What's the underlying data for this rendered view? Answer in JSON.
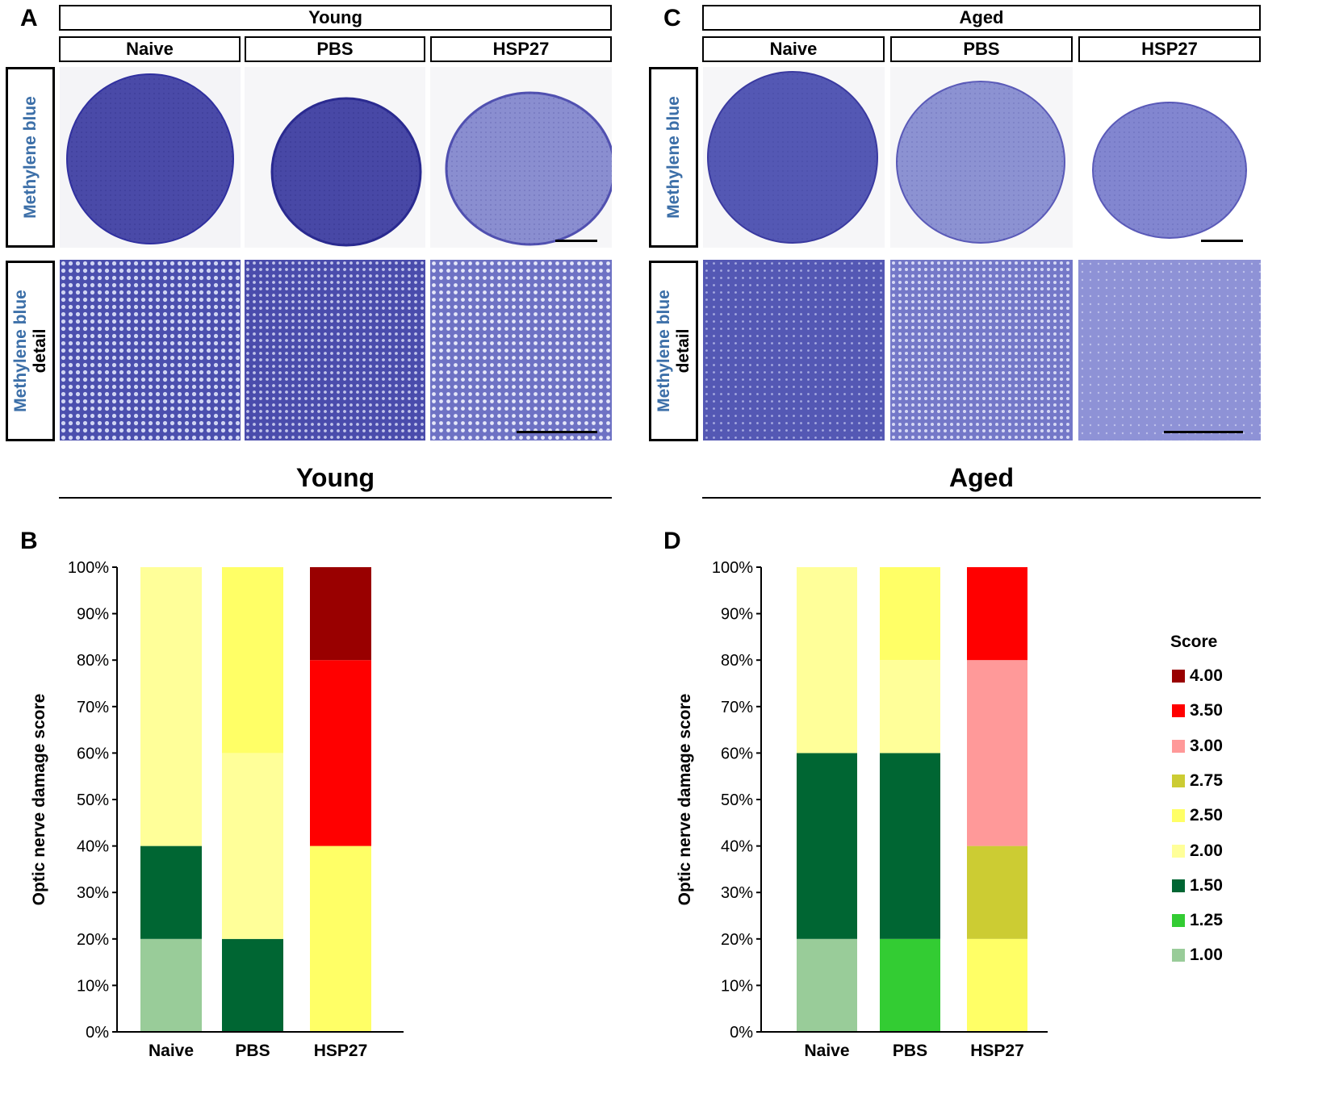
{
  "panels": {
    "A": {
      "letter": "A",
      "group_label": "Young",
      "conditions": [
        "Naive",
        "PBS",
        "HSP27"
      ],
      "row_labels": [
        {
          "stain": "Methylene blue",
          "suffix": ""
        },
        {
          "stain": "Methylene blue",
          "suffix": "detail"
        }
      ]
    },
    "C": {
      "letter": "C",
      "group_label": "Aged",
      "conditions": [
        "Naive",
        "PBS",
        "HSP27"
      ],
      "row_labels": [
        {
          "stain": "Methylene blue",
          "suffix": ""
        },
        {
          "stain": "Methylene blue",
          "suffix": "detail"
        }
      ]
    },
    "B": {
      "letter": "B",
      "section_title": "Young"
    },
    "D": {
      "letter": "D",
      "section_title": "Aged"
    }
  },
  "colors": {
    "score_4_00": "#990000",
    "score_3_50": "#ff0000",
    "score_3_00": "#ff9999",
    "score_2_75": "#cccc33",
    "score_2_50": "#ffff66",
    "score_2_00": "#ffff99",
    "score_1_50": "#006633",
    "score_1_25": "#33cc33",
    "score_1_00": "#99cc99",
    "stain_dark": "#3f3fa0",
    "stain_light": "#8a90d0"
  },
  "legend": {
    "title": "Score",
    "items": [
      {
        "label": "4.00",
        "color": "#990000"
      },
      {
        "label": "3.50",
        "color": "#ff0000"
      },
      {
        "label": "3.00",
        "color": "#ff9999"
      },
      {
        "label": "2.75",
        "color": "#cccc33"
      },
      {
        "label": "2.50",
        "color": "#ffff66"
      },
      {
        "label": "2.00",
        "color": "#ffff99"
      },
      {
        "label": "1.50",
        "color": "#006633"
      },
      {
        "label": "1.25",
        "color": "#33cc33"
      },
      {
        "label": "1.00",
        "color": "#99cc99"
      }
    ]
  },
  "chart_data": [
    {
      "id": "B",
      "type": "bar",
      "stacked": true,
      "title": "Young",
      "ylabel": "Optic nerve damage score",
      "xlabel": "",
      "ylim": [
        0,
        100
      ],
      "ytick_labels": [
        "0%",
        "10%",
        "20%",
        "30%",
        "40%",
        "50%",
        "60%",
        "70%",
        "80%",
        "90%",
        "100%"
      ],
      "categories": [
        "Naive",
        "PBS",
        "HSP27"
      ],
      "series": [
        {
          "name": "1.00",
          "color": "#99cc99",
          "values": [
            20,
            0,
            0
          ]
        },
        {
          "name": "1.25",
          "color": "#33cc33",
          "values": [
            0,
            0,
            0
          ]
        },
        {
          "name": "1.50",
          "color": "#006633",
          "values": [
            20,
            20,
            0
          ]
        },
        {
          "name": "2.00",
          "color": "#ffff99",
          "values": [
            60,
            40,
            0
          ]
        },
        {
          "name": "2.50",
          "color": "#ffff66",
          "values": [
            0,
            40,
            40
          ]
        },
        {
          "name": "2.75",
          "color": "#cccc33",
          "values": [
            0,
            0,
            0
          ]
        },
        {
          "name": "3.00",
          "color": "#ff9999",
          "values": [
            0,
            0,
            0
          ]
        },
        {
          "name": "3.50",
          "color": "#ff0000",
          "values": [
            0,
            0,
            40
          ]
        },
        {
          "name": "4.00",
          "color": "#990000",
          "values": [
            0,
            0,
            20
          ]
        }
      ]
    },
    {
      "id": "D",
      "type": "bar",
      "stacked": true,
      "title": "Aged",
      "ylabel": "Optic nerve damage score",
      "xlabel": "",
      "ylim": [
        0,
        100
      ],
      "ytick_labels": [
        "0%",
        "10%",
        "20%",
        "30%",
        "40%",
        "50%",
        "60%",
        "70%",
        "80%",
        "90%",
        "100%"
      ],
      "categories": [
        "Naive",
        "PBS",
        "HSP27"
      ],
      "series": [
        {
          "name": "1.00",
          "color": "#99cc99",
          "values": [
            20,
            0,
            0
          ]
        },
        {
          "name": "1.25",
          "color": "#33cc33",
          "values": [
            0,
            20,
            0
          ]
        },
        {
          "name": "1.50",
          "color": "#006633",
          "values": [
            40,
            40,
            0
          ]
        },
        {
          "name": "2.00",
          "color": "#ffff99",
          "values": [
            40,
            20,
            0
          ]
        },
        {
          "name": "2.50",
          "color": "#ffff66",
          "values": [
            0,
            20,
            20
          ]
        },
        {
          "name": "2.75",
          "color": "#cccc33",
          "values": [
            0,
            0,
            20
          ]
        },
        {
          "name": "3.00",
          "color": "#ff9999",
          "values": [
            0,
            0,
            40
          ]
        },
        {
          "name": "3.50",
          "color": "#ff0000",
          "values": [
            0,
            0,
            20
          ]
        },
        {
          "name": "4.00",
          "color": "#990000",
          "values": [
            0,
            0,
            0
          ]
        }
      ]
    }
  ]
}
